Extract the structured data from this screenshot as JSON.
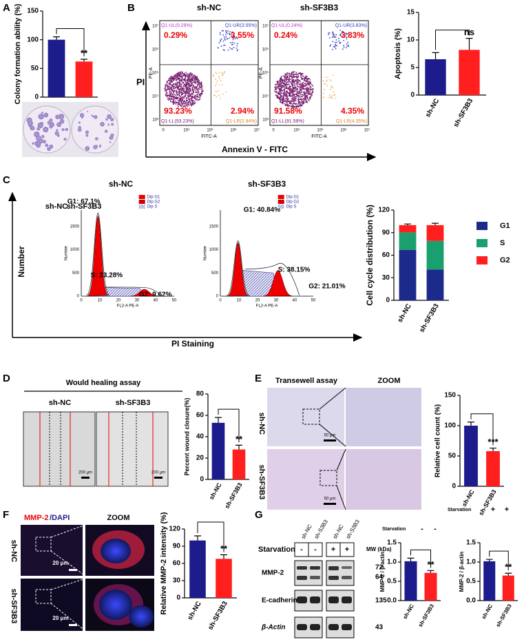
{
  "panel_labels": [
    "A",
    "B",
    "C",
    "D",
    "E",
    "F",
    "G"
  ],
  "chart_data": [
    {
      "type": "bar",
      "y_label": "Colony formation ability (%)",
      "categories": [
        "sh-NC",
        "sh-SF3B3"
      ],
      "values": [
        100,
        62
      ],
      "errors": [
        5,
        4
      ],
      "colors": [
        "#1c1c8c",
        "#ff1f1f"
      ],
      "ylim": [
        0,
        150
      ],
      "yticks": [
        0,
        50,
        100,
        150
      ],
      "annotation": "**"
    },
    {
      "type": "bar",
      "y_label": "Apoptosis (%)",
      "categories": [
        "sh-NC",
        "sh-SF3B3"
      ],
      "values": [
        6.5,
        8.2
      ],
      "errors": [
        1.2,
        2.1
      ],
      "colors": [
        "#1c1c8c",
        "#ff1f1f"
      ],
      "ylim": [
        0,
        15
      ],
      "yticks": [
        0,
        5,
        10,
        15
      ],
      "annotation": "ns"
    },
    {
      "type": "stacked_bar",
      "y_label": "Cell cycle distribution (%)",
      "categories": [
        "sh-NC",
        "sh-SF3B3"
      ],
      "ylim": [
        0,
        120
      ],
      "yticks": [
        0,
        30,
        60,
        90,
        120
      ],
      "series": [
        {
          "name": "G1",
          "color": "#1c2a8c",
          "values": [
            67.1,
            40.84
          ],
          "errors": [
            2,
            1.5
          ]
        },
        {
          "name": "S",
          "color": "#1aa06e",
          "values": [
            23.28,
            38.15
          ],
          "errors": [
            1.5,
            1.5
          ]
        },
        {
          "name": "G2",
          "color": "#ff1f1f",
          "values": [
            9.62,
            21.01
          ],
          "errors": [
            1.5,
            2.5
          ]
        }
      ]
    },
    {
      "type": "bar",
      "y_label": "Percent wound closure(%)",
      "categories": [
        "sh-NC",
        "sh-SF3B3"
      ],
      "values": [
        53,
        28
      ],
      "errors": [
        5,
        4
      ],
      "colors": [
        "#1c1c8c",
        "#ff1f1f"
      ],
      "ylim": [
        0,
        80
      ],
      "yticks": [
        0,
        20,
        40,
        60,
        80
      ],
      "annotation": "**"
    },
    {
      "type": "bar",
      "y_label": "Relative cell count (%)",
      "categories": [
        "sh-NC",
        "sh-SF3B3"
      ],
      "values": [
        100,
        58
      ],
      "errors": [
        6,
        5
      ],
      "colors": [
        "#1c1c8c",
        "#ff1f1f"
      ],
      "ylim": [
        0,
        150
      ],
      "yticks": [
        0,
        50,
        100,
        150
      ],
      "annotation": "***"
    },
    {
      "type": "bar",
      "y_label": "Relative MMP-2 intensity (%)",
      "categories": [
        "sh-NC",
        "sh-SF3B3"
      ],
      "values": [
        100,
        68
      ],
      "errors": [
        8,
        7
      ],
      "colors": [
        "#1c1c8c",
        "#ff1f1f"
      ],
      "ylim": [
        0,
        120
      ],
      "yticks": [
        0,
        30,
        60,
        90,
        120
      ],
      "annotation": "**"
    },
    {
      "type": "bar",
      "y_label": "MMP-2 / β-actin",
      "categories": [
        "sh-NC",
        "sh-SF3B3"
      ],
      "values": [
        1.02,
        0.72
      ],
      "errors": [
        0.08,
        0.06
      ],
      "colors": [
        "#1c1c8c",
        "#ff1f1f"
      ],
      "ylim": [
        0,
        1.5
      ],
      "yticks": [
        {
          "value": 0,
          "label": "0.0"
        },
        {
          "value": 0.5,
          "label": "0.5"
        },
        {
          "value": 1,
          "label": "1.0"
        },
        {
          "value": 1.5,
          "label": "1.5"
        }
      ],
      "annotation": "**"
    },
    {
      "type": "bar",
      "y_label": "MMP-2 / β-actin",
      "categories": [
        "sh-NC",
        "sh-SF3B3"
      ],
      "values": [
        1.02,
        0.65
      ],
      "errors": [
        0.05,
        0.06
      ],
      "colors": [
        "#1c1c8c",
        "#ff1f1f"
      ],
      "ylim": [
        0,
        1.5
      ],
      "yticks": [
        {
          "value": 0,
          "label": "0.0"
        },
        {
          "value": 0.5,
          "label": "0.5"
        },
        {
          "value": 1,
          "label": "1.0"
        },
        {
          "value": 1.5,
          "label": "1.5"
        }
      ],
      "annotation": "**"
    }
  ],
  "flow": {
    "y_axis": "PI",
    "x_axis": "Annexin V - FITC",
    "plot_x_label": "FITC-A",
    "plot_y_label": "PE-A",
    "xticks": [
      "0",
      "10⁴",
      "10⁵",
      "10⁶",
      "10⁷"
    ],
    "yticks": [
      "10³",
      "10⁴",
      "10⁵",
      "10⁶",
      "10⁷"
    ],
    "samples": [
      {
        "title": "sh-NC",
        "quadrants": [
          "Q1-UL(0.29%)",
          "Q1-UR(3.55%)",
          "Q1-LL(93.23%)",
          "Q1-LR(2.94%)"
        ],
        "percents": [
          "0.29%",
          "3.55%",
          "93.23%",
          "2.94%"
        ]
      },
      {
        "title": "sh-SF3B3",
        "quadrants": [
          "Q1-UL(0.24%)",
          "Q1-UR(3.83%)",
          "Q1-LL(91.58%)",
          "Q1-LR(4.35%)"
        ],
        "percents": [
          "0.24%",
          "3.83%",
          "91.58%",
          "4.35%"
        ]
      }
    ]
  },
  "cycle": {
    "axis_y": "Number",
    "axis_x": "PI Staining",
    "plot_x_label": "FL2-A PE-A",
    "plot_y_label": "Number",
    "legend": [
      "Dip G1",
      "Dip G2",
      "Dip S"
    ],
    "xticks": [
      "0",
      "10",
      "20",
      "30",
      "40",
      "50"
    ],
    "yticks": [
      "0",
      "500",
      "1000",
      "1500"
    ],
    "samples": [
      {
        "title": "sh-NC",
        "g1": "G1: 67.1%",
        "s": "S: 23.28%",
        "g2": "G2: 9.62%"
      },
      {
        "title": "sh-SF3B3",
        "g1": "G1: 40.84%",
        "s": "S: 38.15%",
        "g2": "G2: 21.01%"
      }
    ]
  },
  "wound": {
    "title": "Would healing assay",
    "samples": [
      "sh-NC",
      "sh-SF3B3"
    ],
    "scale": "200 μm"
  },
  "transwell": {
    "title": "Transewell assay",
    "zoom": "ZOOM",
    "rows": [
      "sh-NC",
      "sh-SF3B3"
    ],
    "scale": "50 μm"
  },
  "fluor": {
    "stain": "MMP-2",
    "counter": "/DAPI",
    "zoom": "ZOOM",
    "rows": [
      "sh-NC",
      "sh-SF3B3"
    ],
    "scale": "20 μm"
  },
  "western": {
    "lanes": [
      "sh-NC",
      "sh-S3B3",
      "sh-NC",
      "sh-S3B3"
    ],
    "starvation": "Starvation",
    "signs": [
      "-",
      "-",
      "+",
      "+"
    ],
    "mw": "MW (kDa)",
    "bands": [
      {
        "name": "MMP-2",
        "mw": [
          "72",
          "64"
        ]
      },
      {
        "name": "E-cadherin",
        "mw": [
          "135"
        ]
      },
      {
        "name": "β-Actin",
        "mw": [
          "43"
        ]
      }
    ],
    "chart_conditions": [
      {
        "label": "Starvation",
        "signs": [
          "-",
          "-"
        ]
      },
      {
        "label": "Starvation",
        "signs": [
          "+",
          "+"
        ]
      }
    ]
  }
}
